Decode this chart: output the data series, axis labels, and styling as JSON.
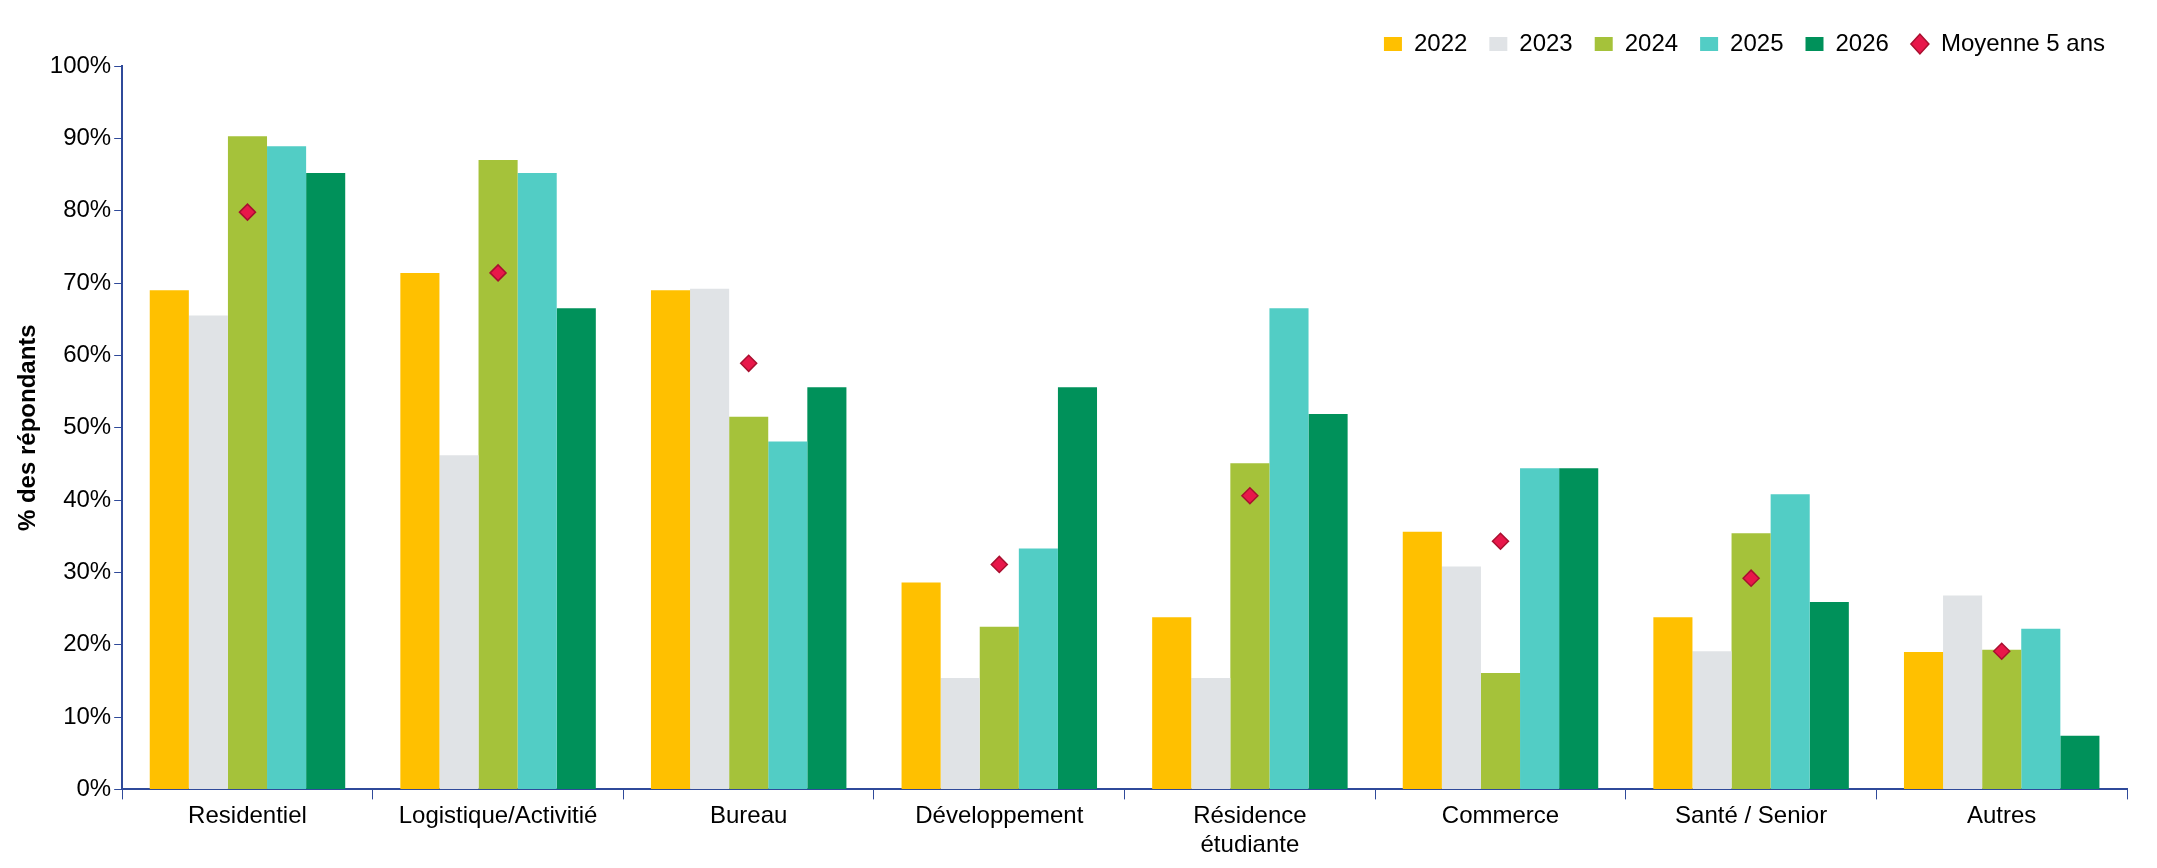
{
  "chart_data": {
    "type": "bar",
    "categories": [
      "Residentiel",
      "Logistique/Activitié",
      "Bureau",
      "Développement",
      "Résidence étudiante",
      "Commerce",
      "Santé / Senior",
      "Autres"
    ],
    "ylabel": "% des répondants",
    "ylim": [
      0,
      100
    ],
    "yticks": [
      {
        "value": 0,
        "label": "0%"
      },
      {
        "value": 10,
        "label": "10%"
      },
      {
        "value": 20,
        "label": "20%"
      },
      {
        "value": 30,
        "label": "30%"
      },
      {
        "value": 40,
        "label": "40%"
      },
      {
        "value": 50,
        "label": "50%"
      },
      {
        "value": 60,
        "label": "60%"
      },
      {
        "value": 70,
        "label": "70%"
      },
      {
        "value": 80,
        "label": "80%"
      },
      {
        "value": 90,
        "label": "90%"
      },
      {
        "value": 100,
        "label": "100%"
      }
    ],
    "grid": false,
    "legend": "top right",
    "series": [
      {
        "name": "2022",
        "color": "#ffc000",
        "values": [
          69.0,
          71.4,
          69.0,
          28.6,
          23.8,
          35.6,
          23.8,
          19.0
        ]
      },
      {
        "name": "2023",
        "color": "#e0e3e6",
        "values": [
          65.5,
          46.2,
          69.2,
          15.4,
          15.4,
          30.8,
          19.1,
          26.8
        ]
      },
      {
        "name": "2024",
        "color": "#a5c23a",
        "values": [
          90.3,
          87.0,
          51.5,
          22.5,
          45.1,
          16.1,
          35.4,
          19.3
        ]
      },
      {
        "name": "2025",
        "color": "#52cdc5",
        "values": [
          88.9,
          85.2,
          48.1,
          33.3,
          66.5,
          44.4,
          40.8,
          22.2
        ]
      },
      {
        "name": "2026",
        "color": "#00915a",
        "values": [
          85.2,
          66.5,
          55.6,
          55.6,
          51.9,
          44.4,
          25.9,
          7.4
        ]
      },
      {
        "name": "Moyenne 5 ans",
        "type": "scatter",
        "marker": "diamond",
        "color": "#e8174a",
        "x": [
          "Residentiel",
          "Logistique/Activitié",
          "Bureau",
          "Développement",
          "Résidence étudiante",
          "Commerce",
          "Santé / Senior",
          "Autres"
        ],
        "values": [
          79.8,
          71.4,
          58.9,
          31.1,
          40.6,
          34.3,
          29.2,
          19.1
        ]
      }
    ]
  }
}
